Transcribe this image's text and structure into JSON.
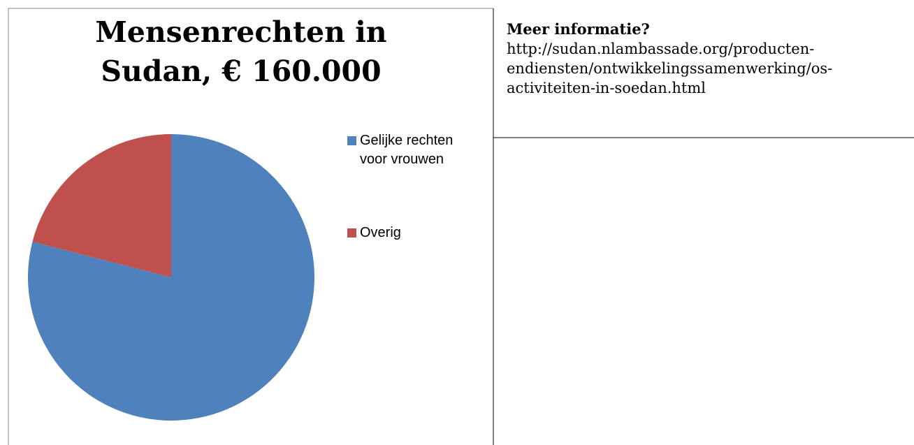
{
  "chart_data": {
    "type": "pie",
    "title": "Mensenrechten in Sudan, € 160.000",
    "categories": [
      "Gelijke rechten voor vrouwen",
      "Overig"
    ],
    "values": [
      79,
      21
    ],
    "colors": [
      "#4f81bd",
      "#c0504d"
    ],
    "legend": "right"
  },
  "info": {
    "heading": "Meer informatie?",
    "url": "http://sudan.nlambassade.org/producten-endiensten/ontwikkelingssamenwerking/os-activiteiten-in-soedan.html"
  }
}
